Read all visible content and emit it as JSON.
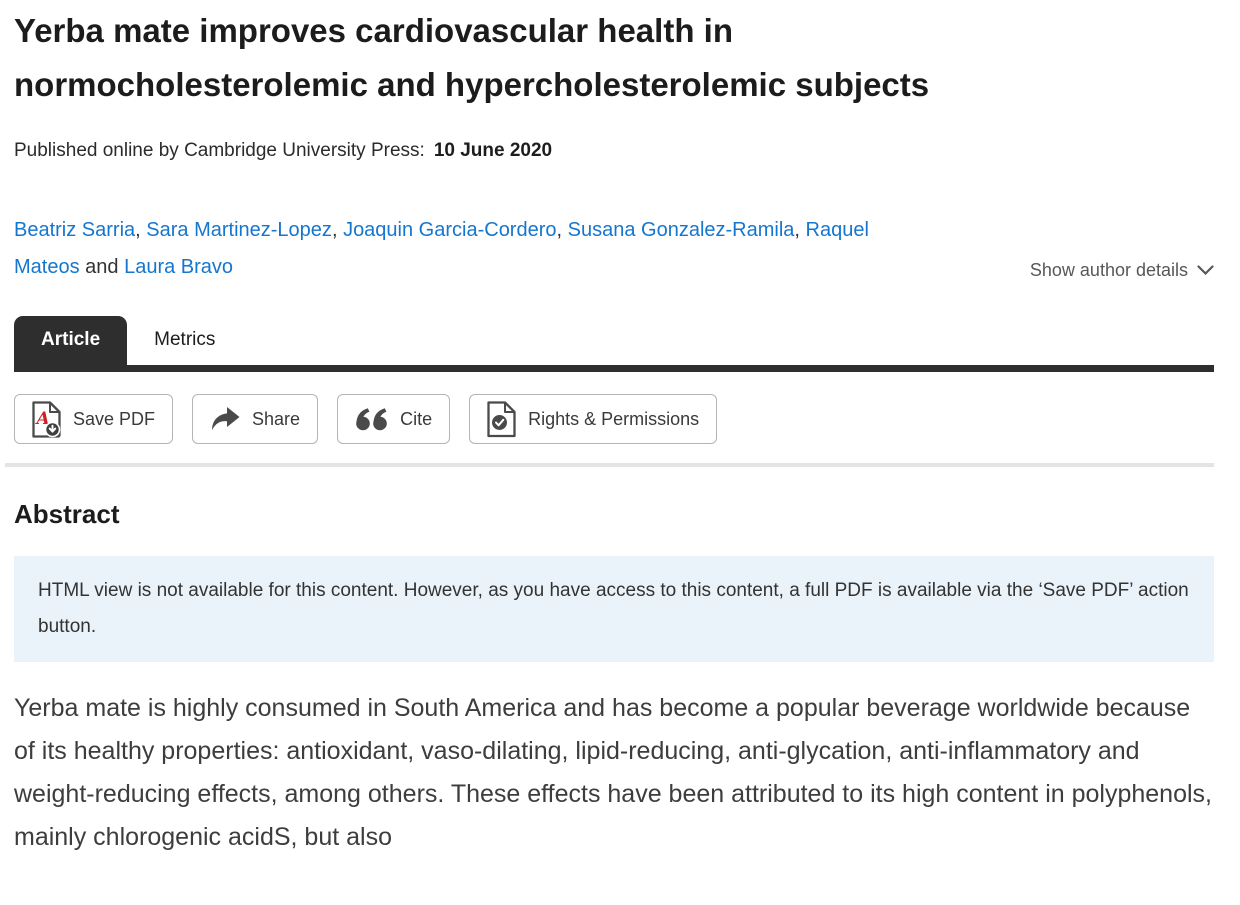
{
  "header": {
    "title": "Yerba mate improves cardiovascular health in normocholesterolemic and hypercholesterolemic subjects",
    "published_prefix": "Published online by Cambridge University Press:",
    "published_date": "10 June 2020"
  },
  "authors": {
    "names": [
      "Beatriz Sarria",
      "Sara Martinez-Lopez",
      "Joaquin Garcia-Cordero",
      "Susana Gonzalez-Ramila",
      "Raquel Mateos",
      "Laura Bravo"
    ],
    "and_separator": "and",
    "show_details_label": "Show author details"
  },
  "tabs": [
    {
      "label": "Article",
      "active": true
    },
    {
      "label": "Metrics",
      "active": false
    }
  ],
  "action_buttons": [
    {
      "label": "Save PDF",
      "icon": "pdf-download-icon"
    },
    {
      "label": "Share",
      "icon": "share-arrow-icon"
    },
    {
      "label": "Cite",
      "icon": "quote-icon"
    },
    {
      "label": "Rights & Permissions",
      "icon": "document-check-icon"
    }
  ],
  "abstract": {
    "heading": "Abstract",
    "notice": "HTML view is not available for this content. However, as you have access to this content, a full PDF is available via the ‘Save PDF’ action button.",
    "body": "Yerba mate is highly consumed in South America and has become a popular beverage worldwide because of its healthy properties: antioxidant, vaso-dilating, lipid-reducing, anti-glycation, anti-inflammatory and weight-reducing effects, among others. These effects have been attributed to its high content in polyphenols, mainly chlorogenic acidS, but also"
  },
  "colors": {
    "link_blue": "#1576d0",
    "tab_dark": "#2e2e2e",
    "notice_bg": "#eaf3fa",
    "icon_gray": "#4a4a4a",
    "pdf_red": "#cf2027"
  }
}
